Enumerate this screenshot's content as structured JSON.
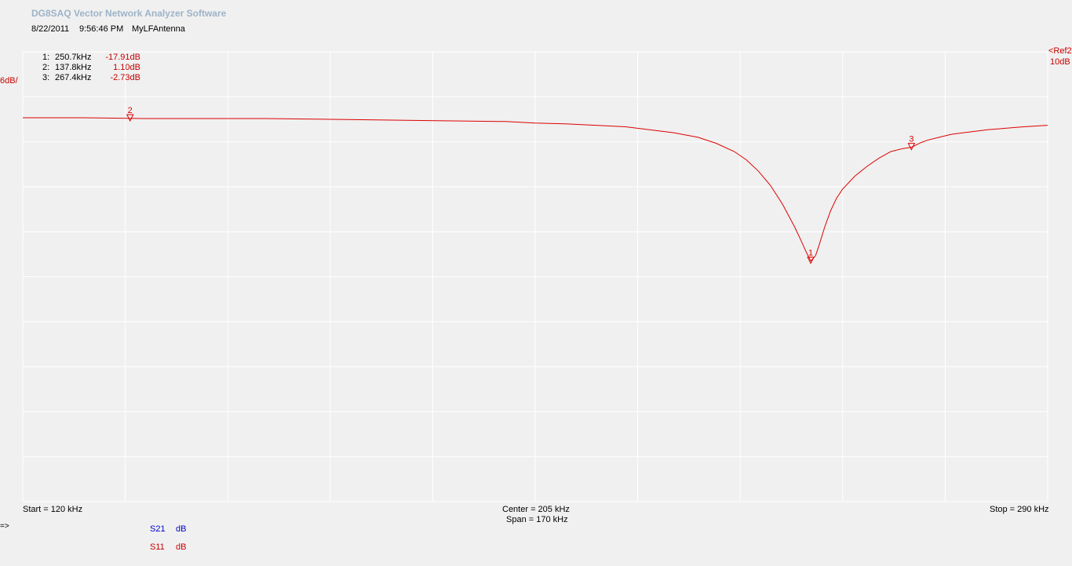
{
  "header": {
    "app_title": "DG8SAQ Vector Network Analyzer Software",
    "date": "8/22/2011",
    "time": "9:56:46 PM",
    "measurement_name": "MyLFAntenna"
  },
  "markers_table": [
    {
      "index": "1:",
      "freq": "250.7kHz",
      "value": "-17.91dB"
    },
    {
      "index": "2:",
      "freq": "137.8kHz",
      "value": "1.10dB"
    },
    {
      "index": "3:",
      "freq": "267.4kHz",
      "value": "-2.73dB"
    }
  ],
  "scale": {
    "per_div": "6dB/",
    "ref_label": "<Ref2",
    "ref_level": "10dB"
  },
  "axis": {
    "start": "Start = 120 kHz",
    "center": "Center = 205 kHz",
    "span": "Span = 170 kHz",
    "stop": "Stop = 290 kHz"
  },
  "traces_legend": [
    {
      "name": "S21",
      "format": "dB",
      "color": "#0000cc"
    },
    {
      "name": "S11",
      "format": "dB",
      "color": "#c80000"
    }
  ],
  "prompt_glyph": "=>",
  "colors": {
    "background": "#f0f0f0",
    "grid": "#ffffff",
    "trace": "#dd0000",
    "title": "#9db3c8"
  },
  "chart_data": {
    "type": "line",
    "xlim": [
      120,
      290
    ],
    "ylim": [
      -50,
      10
    ],
    "grid": true,
    "series": [
      {
        "name": "S11",
        "x": [
          120,
          130,
          140,
          150,
          160,
          170,
          180,
          190,
          200,
          205,
          210,
          215,
          220,
          225,
          228,
          232,
          235,
          238,
          240,
          242,
          244,
          246,
          248,
          249,
          250,
          250.7,
          251.5,
          252,
          253,
          254,
          255,
          256,
          258,
          260,
          262,
          264,
          266,
          267.4,
          269,
          270,
          272,
          274,
          276,
          278,
          280,
          283,
          286,
          290
        ],
        "values": [
          1.2,
          1.2,
          1.1,
          1.1,
          1.1,
          1.0,
          0.9,
          0.8,
          0.7,
          0.5,
          0.4,
          0.2,
          0.0,
          -0.5,
          -0.8,
          -1.4,
          -2.2,
          -3.3,
          -4.4,
          -5.9,
          -7.8,
          -10.3,
          -13.3,
          -15.0,
          -16.8,
          -17.91,
          -17.2,
          -16.0,
          -13.4,
          -11.2,
          -9.5,
          -8.3,
          -6.6,
          -5.3,
          -4.2,
          -3.3,
          -2.9,
          -2.73,
          -2.1,
          -1.8,
          -1.4,
          -1.0,
          -0.8,
          -0.6,
          -0.4,
          -0.2,
          0.0,
          0.2
        ]
      }
    ],
    "markers": [
      {
        "label": "1",
        "x": 250.7,
        "y": -17.91
      },
      {
        "label": "2",
        "x": 137.8,
        "y": 1.1
      },
      {
        "label": "3",
        "x": 267.4,
        "y": -2.73
      }
    ]
  }
}
